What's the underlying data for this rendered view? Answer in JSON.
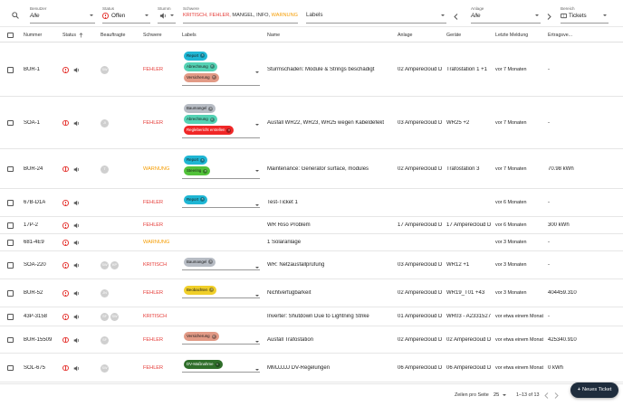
{
  "filters": {
    "benutzer_label": "Benutzer",
    "benutzer_value": "Alle",
    "status_label": "Status",
    "status_value": "Offen",
    "stumm_label": "Stumm",
    "schwere_label": "Schwere",
    "schwere_kritisch": "KRITISCH,",
    "schwere_fehler": "FEHLER,",
    "schwere_mangel": "MANGEL,",
    "schwere_info": "INFO,",
    "schwere_warnung": "WARNUNG",
    "labels_placeholder": "Labels",
    "anlage_label": "Anlage",
    "anlage_value": "Alle",
    "bereich_label": "Bereich",
    "bereich_value": "Tickets"
  },
  "columns": {
    "nummer": "Nummer",
    "status": "Status",
    "beauftragte": "Beauftragte",
    "schwere": "Schwere",
    "labels": "Labels",
    "name": "Name",
    "anlage": "Anlage",
    "geraete": "Geräte",
    "letzte_meldung": "Letzte Meldung",
    "ertragsverlust": "Ertragsve..."
  },
  "colors": {
    "kritisch": "#e53935",
    "fehler": "#e53935",
    "warnung": "#f59c00",
    "mangel": "#333333",
    "info": "#333333"
  },
  "rows": [
    {
      "nummer": "BUR-1",
      "avatars": [
        "SW"
      ],
      "schwere": "FEHLER",
      "sev": "fehler",
      "labels": [
        {
          "text": "Report",
          "bg": "#1fb6d4"
        },
        {
          "text": "Abrechnung",
          "bg": "#54d2b4"
        },
        {
          "text": "Versicherung",
          "bg": "#e29a86"
        }
      ],
      "name": "Sturmschaden: Module & Strings beschädigt",
      "anlage": "02 Amperecloud D",
      "geraete": "Trafostation 1 +1",
      "letzte": "vor 7 Monaten",
      "ertrag": "-"
    },
    {
      "nummer": "SOA-1",
      "avatars": [
        "JI"
      ],
      "schwere": "FEHLER",
      "sev": "fehler",
      "labels": [
        {
          "text": "Baumangel",
          "bg": "#b7bcc4"
        },
        {
          "text": "Abrechnung",
          "bg": "#54d2b4"
        },
        {
          "text": "Reglebericht erstellen",
          "bg": "#f02727",
          "fg": "#fff"
        }
      ],
      "name": "Ausfall WR22, WR23, WR25 wegen Kabeldefekt",
      "anlage": "03 Amperecloud D",
      "geraete": "WR25 +2",
      "letzte": "vor 7 Monaten",
      "ertrag": "-"
    },
    {
      "nummer": "BUR-24",
      "avatars": [
        "T"
      ],
      "schwere": "WARNUNG",
      "sev": "warnung",
      "labels": [
        {
          "text": "Report",
          "bg": "#1fb6d4"
        },
        {
          "text": "Steering",
          "bg": "#52c23a"
        }
      ],
      "name": "Maintenance: Generator surface, modules",
      "anlage": "02 Amperecloud D",
      "geraete": "Trafostation 3",
      "letzte": "vor 7 Monaten",
      "ertrag": "70.98 kWh"
    },
    {
      "nummer": "67B-D1A",
      "avatars": [],
      "schwere": "FEHLER",
      "sev": "fehler",
      "labels": [
        {
          "text": "Report",
          "bg": "#1fb6d4"
        }
      ],
      "name": "Test-Ticket 1",
      "anlage": "",
      "geraete": "",
      "letzte": "vor 6 Monaten",
      "ertrag": "-"
    },
    {
      "nummer": "17P-2",
      "avatars": [],
      "schwere": "FEHLER",
      "sev": "fehler",
      "labels": [],
      "name": "WR Riso Problem",
      "anlage": "17 Amperecloud D",
      "geraete": "17 Amperecloud D",
      "letzte": "vor 6 Monaten",
      "ertrag": "300 kWh"
    },
    {
      "nummer": "681-4E9",
      "avatars": [],
      "schwere": "WARNUNG",
      "sev": "warnung",
      "labels": [],
      "name": "1 Solaranlage",
      "anlage": "",
      "geraete": "",
      "letzte": "vor 3 Monaten",
      "ertrag": "-"
    },
    {
      "nummer": "SOA-220",
      "avatars": [
        "SW",
        "KP"
      ],
      "schwere": "KRITISCH",
      "sev": "kritisch",
      "labels": [
        {
          "text": "Baumangel",
          "bg": "#b7bcc4"
        }
      ],
      "name": "WR: Netzausfallprüfung",
      "anlage": "03 Amperecloud D",
      "geraete": "WR12 +1",
      "letzte": "vor 3 Monaten",
      "ertrag": "-"
    },
    {
      "nummer": "BUR-52",
      "avatars": [
        "JN"
      ],
      "schwere": "FEHLER",
      "sev": "fehler",
      "labels": [
        {
          "text": "Beobachten",
          "bg": "#f0cf2a"
        }
      ],
      "name": "Nichtverfügbarkeit",
      "anlage": "02 Amperecloud D",
      "geraete": "WR19_T01 +43",
      "letzte": "vor 3 Monaten",
      "ertrag": "404459.310"
    },
    {
      "nummer": "43P-3158",
      "avatars": [
        "SF",
        "SW"
      ],
      "schwere": "KRITISCH",
      "sev": "kritisch",
      "labels": [],
      "name": "Inverter: Shutdown Due to Lightning Strike",
      "anlage": "01 Amperecloud D",
      "geraete": "WR03 - A2331527",
      "letzte": "vor etwa einem Monat",
      "ertrag": "-"
    },
    {
      "nummer": "BUR-15509",
      "avatars": [
        "SF"
      ],
      "schwere": "FEHLER",
      "sev": "fehler",
      "labels": [
        {
          "text": "Versicherung",
          "bg": "#e29a86"
        }
      ],
      "name": "Ausfall Trafostation",
      "anlage": "02 Amperecloud D",
      "geraete": "02 Amperecloud D",
      "letzte": "vor etwa einem Monat",
      "ertrag": "425340.910"
    },
    {
      "nummer": "SOL-675",
      "avatars": [
        "SW"
      ],
      "schwere": "FEHLER",
      "sev": "fehler",
      "labels": [
        {
          "text": "DV-Maßnahme",
          "bg": "#2f6e2a",
          "fg": "#fff"
        }
      ],
      "name": "MMJJJJJ DV-Regelungen",
      "anlage": "06 Amperecloud D",
      "geraete": "06 Amperecloud D",
      "letzte": "vor etwa einem Monat",
      "ertrag": "0 kWh"
    }
  ],
  "footer": {
    "rows_per_page_label": "Zeilen pro Seite",
    "rows_per_page_value": "25",
    "range_text": "1–13 of 13",
    "new_ticket_label": "Neues Ticket"
  }
}
